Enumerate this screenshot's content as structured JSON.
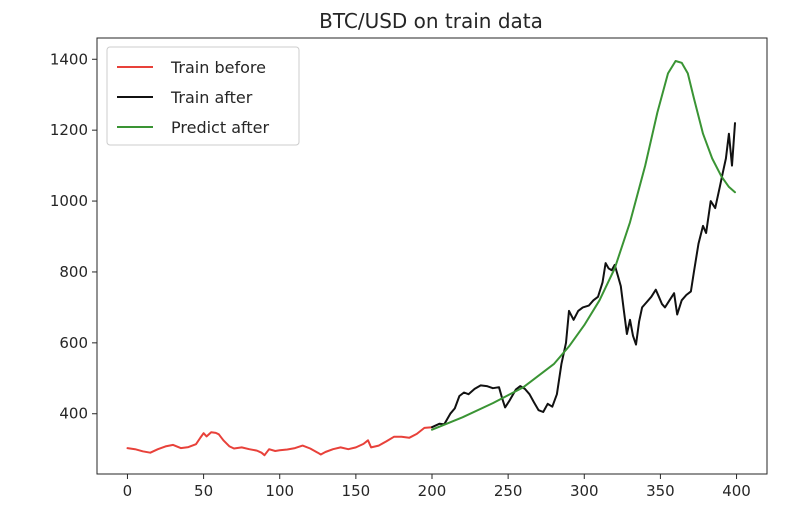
{
  "chart_data": {
    "type": "line",
    "title": "BTC/USD on train data",
    "xlabel": "",
    "ylabel": "",
    "xlim": [
      -20,
      420
    ],
    "ylim": [
      230,
      1460
    ],
    "x_ticks": [
      0,
      50,
      100,
      150,
      200,
      250,
      300,
      350,
      400
    ],
    "y_ticks": [
      400,
      600,
      800,
      1000,
      1200,
      1400
    ],
    "grid": false,
    "legend_position": "top-left",
    "series": [
      {
        "name": "Train before",
        "color": "#e8413a",
        "points": [
          [
            0,
            303
          ],
          [
            5,
            300
          ],
          [
            10,
            294
          ],
          [
            15,
            290
          ],
          [
            20,
            300
          ],
          [
            25,
            308
          ],
          [
            30,
            312
          ],
          [
            35,
            303
          ],
          [
            40,
            306
          ],
          [
            45,
            314
          ],
          [
            48,
            333
          ],
          [
            50,
            345
          ],
          [
            52,
            336
          ],
          [
            55,
            348
          ],
          [
            58,
            346
          ],
          [
            60,
            342
          ],
          [
            63,
            325
          ],
          [
            67,
            308
          ],
          [
            70,
            302
          ],
          [
            75,
            305
          ],
          [
            80,
            300
          ],
          [
            85,
            296
          ],
          [
            88,
            290
          ],
          [
            90,
            283
          ],
          [
            93,
            300
          ],
          [
            97,
            295
          ],
          [
            100,
            297
          ],
          [
            105,
            299
          ],
          [
            110,
            303
          ],
          [
            115,
            310
          ],
          [
            120,
            302
          ],
          [
            125,
            290
          ],
          [
            127,
            285
          ],
          [
            130,
            292
          ],
          [
            135,
            300
          ],
          [
            140,
            305
          ],
          [
            145,
            300
          ],
          [
            150,
            305
          ],
          [
            155,
            315
          ],
          [
            158,
            325
          ],
          [
            160,
            305
          ],
          [
            165,
            310
          ],
          [
            170,
            322
          ],
          [
            175,
            335
          ],
          [
            180,
            335
          ],
          [
            185,
            332
          ],
          [
            190,
            343
          ],
          [
            195,
            360
          ],
          [
            200,
            362
          ]
        ]
      },
      {
        "name": "Train after",
        "color": "#111111",
        "points": [
          [
            200,
            362
          ],
          [
            205,
            372
          ],
          [
            208,
            370
          ],
          [
            212,
            400
          ],
          [
            215,
            415
          ],
          [
            218,
            450
          ],
          [
            221,
            460
          ],
          [
            224,
            455
          ],
          [
            228,
            470
          ],
          [
            232,
            480
          ],
          [
            236,
            478
          ],
          [
            240,
            472
          ],
          [
            244,
            475
          ],
          [
            246,
            445
          ],
          [
            248,
            418
          ],
          [
            251,
            438
          ],
          [
            255,
            468
          ],
          [
            258,
            478
          ],
          [
            261,
            470
          ],
          [
            264,
            455
          ],
          [
            267,
            432
          ],
          [
            270,
            410
          ],
          [
            273,
            405
          ],
          [
            276,
            428
          ],
          [
            279,
            420
          ],
          [
            282,
            455
          ],
          [
            285,
            540
          ],
          [
            288,
            600
          ],
          [
            290,
            690
          ],
          [
            293,
            665
          ],
          [
            296,
            690
          ],
          [
            299,
            700
          ],
          [
            303,
            705
          ],
          [
            306,
            720
          ],
          [
            309,
            730
          ],
          [
            312,
            770
          ],
          [
            314,
            825
          ],
          [
            316,
            810
          ],
          [
            318,
            805
          ],
          [
            320,
            820
          ],
          [
            322,
            790
          ],
          [
            324,
            760
          ],
          [
            326,
            690
          ],
          [
            328,
            625
          ],
          [
            330,
            665
          ],
          [
            332,
            620
          ],
          [
            334,
            595
          ],
          [
            336,
            660
          ],
          [
            338,
            700
          ],
          [
            341,
            715
          ],
          [
            344,
            730
          ],
          [
            347,
            750
          ],
          [
            349,
            730
          ],
          [
            351,
            710
          ],
          [
            353,
            700
          ],
          [
            356,
            720
          ],
          [
            359,
            740
          ],
          [
            361,
            680
          ],
          [
            364,
            720
          ],
          [
            367,
            735
          ],
          [
            370,
            745
          ],
          [
            372,
            800
          ],
          [
            375,
            880
          ],
          [
            378,
            930
          ],
          [
            380,
            910
          ],
          [
            383,
            1000
          ],
          [
            386,
            980
          ],
          [
            389,
            1040
          ],
          [
            391,
            1080
          ],
          [
            393,
            1120
          ],
          [
            395,
            1190
          ],
          [
            397,
            1100
          ],
          [
            399,
            1220
          ]
        ]
      },
      {
        "name": "Predict after",
        "color": "#3a9434",
        "points": [
          [
            200,
            355
          ],
          [
            220,
            390
          ],
          [
            240,
            430
          ],
          [
            260,
            475
          ],
          [
            280,
            540
          ],
          [
            290,
            590
          ],
          [
            300,
            650
          ],
          [
            310,
            720
          ],
          [
            320,
            810
          ],
          [
            330,
            940
          ],
          [
            340,
            1100
          ],
          [
            348,
            1250
          ],
          [
            355,
            1360
          ],
          [
            360,
            1395
          ],
          [
            364,
            1390
          ],
          [
            368,
            1360
          ],
          [
            372,
            1290
          ],
          [
            378,
            1190
          ],
          [
            384,
            1120
          ],
          [
            390,
            1070
          ],
          [
            395,
            1040
          ],
          [
            399,
            1025
          ]
        ]
      }
    ]
  }
}
